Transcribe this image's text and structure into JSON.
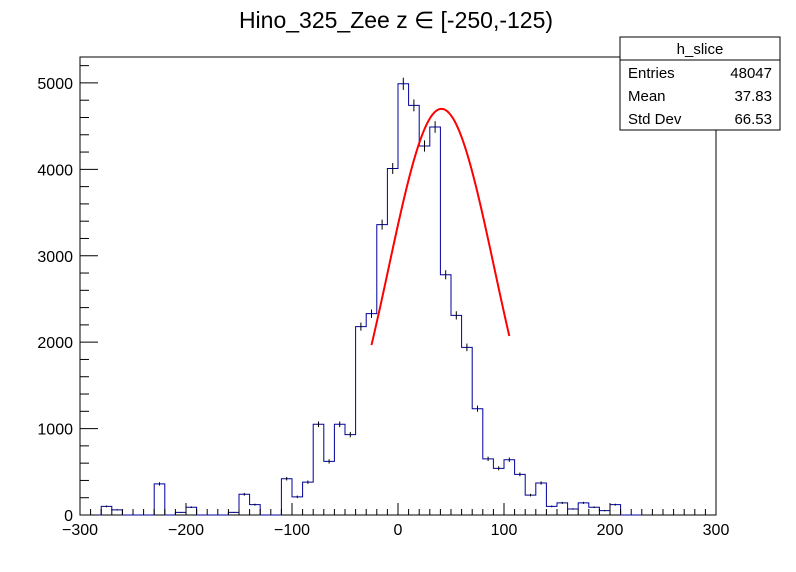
{
  "chart_data": {
    "type": "histogram",
    "title": "Hino_325_Zee z  ∈ [-250,-125)",
    "xlabel": "",
    "ylabel": "",
    "xlim": [
      -300,
      300
    ],
    "ylim": [
      0,
      5300
    ],
    "x_ticks": [
      -300,
      -200,
      -100,
      0,
      100,
      200,
      300
    ],
    "x_tick_labels": [
      "−300",
      "−200",
      "−100",
      "0",
      "100",
      "200",
      "300"
    ],
    "y_ticks": [
      0,
      1000,
      2000,
      3000,
      4000,
      5000
    ],
    "y_tick_labels": [
      "0",
      "1000",
      "2000",
      "3000",
      "4000",
      "5000"
    ],
    "bin_edges_start": -290,
    "bin_width": 10,
    "series": [
      {
        "values": [
          0,
          100,
          60,
          0,
          0,
          0,
          360,
          0,
          30,
          90,
          0,
          0,
          0,
          30,
          240,
          120,
          0,
          0,
          420,
          210,
          380,
          1050,
          620,
          1050,
          930,
          2180,
          2330,
          3360,
          4010,
          4990,
          4740,
          4270,
          4490,
          2780,
          2310,
          1940,
          1230,
          650,
          540,
          640,
          470,
          230,
          370,
          100,
          140,
          70,
          140,
          90,
          50,
          120,
          0,
          0
        ]
      }
    ],
    "fit": {
      "type": "gaussian",
      "amplitude": 4700,
      "mean": 41,
      "sigma": 50,
      "x_range": [
        -25,
        105
      ],
      "color": "#ff0000"
    },
    "hist_color": "#000099",
    "grid": false
  },
  "stats_box": {
    "name": "h_slice",
    "rows": [
      {
        "label": "Entries",
        "value": "48047"
      },
      {
        "label": "Mean",
        "value": "37.83"
      },
      {
        "label": "Std Dev",
        "value": "66.53"
      }
    ],
    "placement": "top-right"
  }
}
